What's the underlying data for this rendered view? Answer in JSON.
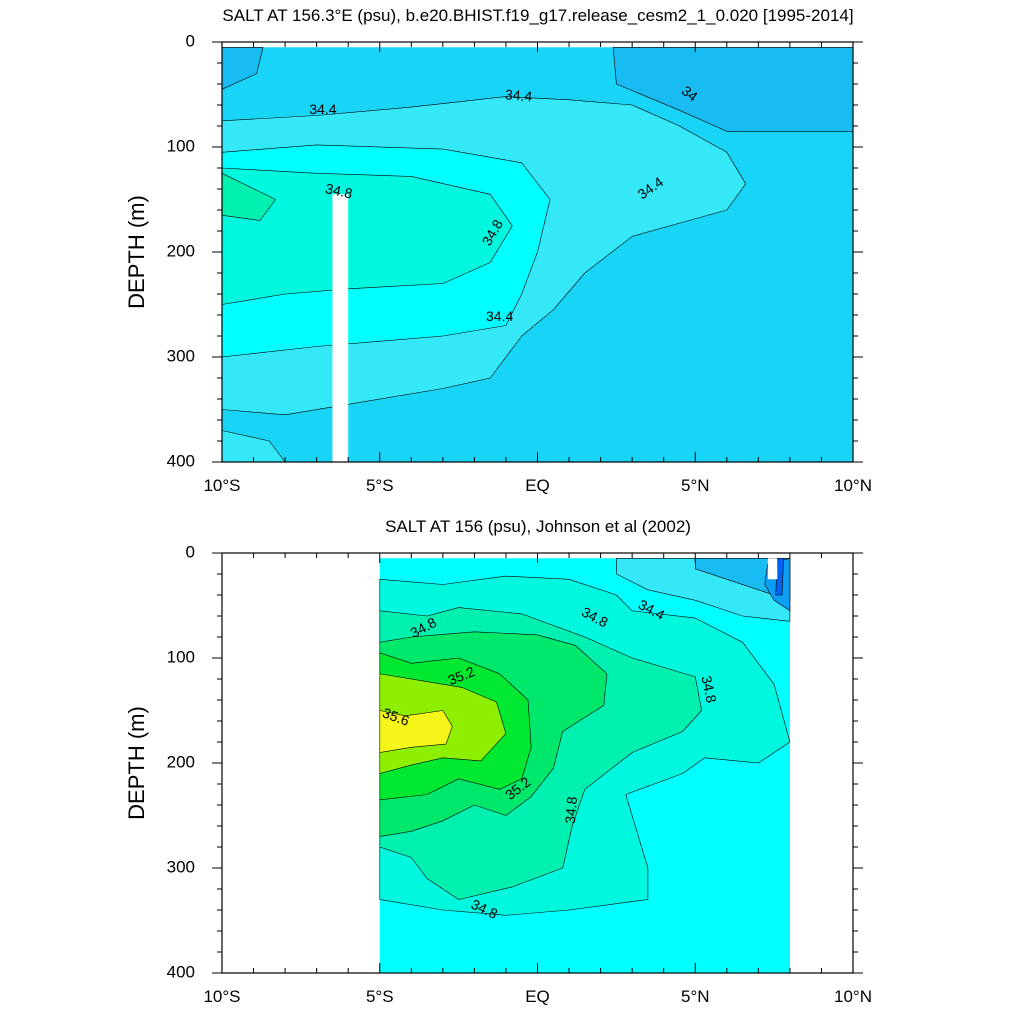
{
  "chart_data": [
    {
      "type": "contour",
      "title": "SALT AT 156.3°E (psu), b.e20.BHIST.f19_g17.release_cesm2_1_0.020 [1995-2014]",
      "ylabel": "DEPTH (m)",
      "xlabel": "",
      "xlim": [
        -10,
        10
      ],
      "ylim": [
        400,
        0
      ],
      "x_ticks": [
        -10,
        -5,
        0,
        5,
        10
      ],
      "x_tick_labels": [
        "10°S",
        "5°S",
        "EQ",
        "5°N",
        "10°N"
      ],
      "y_ticks": [
        0,
        100,
        200,
        300,
        400
      ],
      "y_tick_labels": [
        "0",
        "100",
        "200",
        "300",
        "400"
      ],
      "contour_interval": 0.2,
      "missing_column": {
        "x_range": [
          -6.5,
          -6.0
        ],
        "depth_range": [
          145,
          400
        ]
      },
      "regions": [
        {
          "level": "33.8-34.0",
          "color": "#0a9ef5",
          "polygon": [
            [
              6.3,
              5
            ],
            [
              10,
              5
            ],
            [
              10,
              50
            ],
            [
              7,
              55
            ],
            [
              6.3,
              30
            ]
          ]
        },
        {
          "level": "34.0-34.2",
          "color": "#18bcf3",
          "polygon": [
            [
              -10,
              5
            ],
            [
              -8.7,
              5
            ],
            [
              -8.9,
              30
            ],
            [
              -10,
              45
            ]
          ]
        },
        {
          "level": "34.0-34.2",
          "color": "#18bcf3",
          "polygon": [
            [
              2.4,
              5
            ],
            [
              10,
              5
            ],
            [
              10,
              85
            ],
            [
              6,
              85
            ],
            [
              4.5,
              65
            ],
            [
              2.5,
              40
            ]
          ]
        },
        {
          "level": "34.2-34.4",
          "color": "#35e8f8",
          "polygon": [
            [
              -10,
              75
            ],
            [
              -7,
              70
            ],
            [
              -4,
              62
            ],
            [
              -1,
              52
            ],
            [
              1,
              55
            ],
            [
              3,
              60
            ],
            [
              4.5,
              80
            ],
            [
              6,
              105
            ],
            [
              6.6,
              135
            ],
            [
              6,
              160
            ],
            [
              3,
              185
            ],
            [
              1.5,
              220
            ],
            [
              0.5,
              255
            ],
            [
              -0.5,
              280
            ],
            [
              -1.5,
              320
            ],
            [
              -3,
              330
            ],
            [
              -6,
              345
            ],
            [
              -8,
              355
            ],
            [
              -10,
              350
            ]
          ]
        },
        {
          "level": "34.4-34.6",
          "color": "#00ffff",
          "polygon": [
            [
              -10,
              105
            ],
            [
              -7,
              98
            ],
            [
              -3,
              102
            ],
            [
              -0.5,
              115
            ],
            [
              0.4,
              150
            ],
            [
              0,
              200
            ],
            [
              -0.5,
              240
            ],
            [
              -1,
              270
            ],
            [
              -3,
              280
            ],
            [
              -7,
              290
            ],
            [
              -10,
              300
            ]
          ]
        },
        {
          "level": "34.6-34.8",
          "color": "#00f8df",
          "polygon": [
            [
              -10,
              120
            ],
            [
              -7,
              125
            ],
            [
              -4,
              128
            ],
            [
              -1.5,
              145
            ],
            [
              -0.8,
              175
            ],
            [
              -1.5,
              210
            ],
            [
              -3,
              230
            ],
            [
              -6,
              235
            ],
            [
              -8,
              240
            ],
            [
              -10,
              250
            ]
          ]
        },
        {
          "level": "34.8-35.0",
          "color": "#00f0b0",
          "polygon": [
            [
              -10,
              125
            ],
            [
              -8.3,
              150
            ],
            [
              -8.8,
              170
            ],
            [
              -10,
              165
            ]
          ]
        },
        {
          "level": "34.2-34.4 (deep)",
          "color": "#35e8f8",
          "polygon": [
            [
              -10,
              370
            ],
            [
              -8.5,
              380
            ],
            [
              -8,
              400
            ],
            [
              -10,
              400
            ]
          ]
        }
      ],
      "contour_labels": [
        {
          "text": "34.4",
          "x": -6.8,
          "depth": 65,
          "angle": 0
        },
        {
          "text": "34.4",
          "x": -0.6,
          "depth": 52,
          "angle": 5
        },
        {
          "text": "34",
          "x": 4.8,
          "depth": 50,
          "angle": 38
        },
        {
          "text": "34.8",
          "x": -6.3,
          "depth": 143,
          "angle": 12
        },
        {
          "text": "34.4",
          "x": 3.6,
          "depth": 140,
          "angle": -35
        },
        {
          "text": "34.8",
          "x": -1.4,
          "depth": 182,
          "angle": -60
        },
        {
          "text": "34.4",
          "x": -1.2,
          "depth": 262,
          "angle": 0
        }
      ]
    },
    {
      "type": "contour",
      "title": "SALT AT 156 (psu), Johnson et al (2002)",
      "ylabel": "DEPTH (m)",
      "xlabel": "",
      "xlim": [
        -10,
        10
      ],
      "ylim": [
        400,
        0
      ],
      "x_ticks": [
        -10,
        -5,
        0,
        5,
        10
      ],
      "x_tick_labels": [
        "10°S",
        "5°S",
        "EQ",
        "5°N",
        "10°N"
      ],
      "y_ticks": [
        0,
        100,
        200,
        300,
        400
      ],
      "y_tick_labels": [
        "0",
        "100",
        "200",
        "300",
        "400"
      ],
      "contour_interval": 0.2,
      "data_extent": {
        "x_range": [
          -5,
          8
        ],
        "depth_range": [
          5,
          400
        ]
      },
      "regions": [
        {
          "level": "34.4-34.6",
          "color": "#00ffff",
          "polygon": [
            [
              -5,
              5
            ],
            [
              8,
              5
            ],
            [
              8,
              400
            ],
            [
              -5,
              400
            ]
          ]
        },
        {
          "level": "34.2-34.4",
          "color": "#35e8f8",
          "polygon": [
            [
              2.5,
              5
            ],
            [
              8,
              5
            ],
            [
              8,
              65
            ],
            [
              6.5,
              60
            ],
            [
              5,
              45
            ],
            [
              3.5,
              35
            ],
            [
              2.5,
              20
            ]
          ]
        },
        {
          "level": "34.0-34.2",
          "color": "#18bcf3",
          "polygon": [
            [
              5,
              5
            ],
            [
              8,
              5
            ],
            [
              8,
              45
            ],
            [
              7,
              35
            ],
            [
              6,
              25
            ],
            [
              5,
              15
            ]
          ]
        },
        {
          "level": "33.8-34.0",
          "color": "#0a9ef5",
          "polygon": [
            [
              7.3,
              10
            ],
            [
              8,
              5
            ],
            [
              8,
              55
            ],
            [
              7.5,
              45
            ],
            [
              7.2,
              30
            ]
          ]
        },
        {
          "level": "33.6-33.8",
          "color": "#0064f0",
          "polygon": [
            [
              7.6,
              5
            ],
            [
              7.8,
              5
            ],
            [
              7.75,
              40
            ],
            [
              7.55,
              40
            ]
          ]
        },
        {
          "level": "34.6-34.8",
          "color": "#00f8df",
          "polygon": [
            [
              -5,
              25
            ],
            [
              -3,
              30
            ],
            [
              -1,
              22
            ],
            [
              1,
              25
            ],
            [
              2.5,
              40
            ],
            [
              3,
              55
            ],
            [
              5,
              62
            ],
            [
              6.5,
              85
            ],
            [
              7.5,
              125
            ],
            [
              8,
              180
            ],
            [
              7,
              200
            ],
            [
              5.3,
              195
            ],
            [
              4.6,
              210
            ],
            [
              2.8,
              230
            ],
            [
              3.5,
              300
            ],
            [
              3.5,
              330
            ],
            [
              1,
              340
            ],
            [
              -1,
              345
            ],
            [
              -3,
              340
            ],
            [
              -5,
              330
            ]
          ]
        },
        {
          "level": "34.8-35.0",
          "color": "#00f0b0",
          "polygon": [
            [
              -5,
              55
            ],
            [
              -3.5,
              60
            ],
            [
              -2.5,
              52
            ],
            [
              -0.5,
              58
            ],
            [
              1.5,
              80
            ],
            [
              3,
              100
            ],
            [
              5,
              118
            ],
            [
              5.2,
              150
            ],
            [
              4.6,
              170
            ],
            [
              3,
              190
            ],
            [
              1.5,
              225
            ],
            [
              1.1,
              260
            ],
            [
              0.8,
              300
            ],
            [
              -0.8,
              318
            ],
            [
              -2.5,
              330
            ],
            [
              -3.5,
              310
            ],
            [
              -4,
              290
            ],
            [
              -5,
              280
            ]
          ]
        },
        {
          "level": "35.0-35.2",
          "color": "#00e86b",
          "polygon": [
            [
              -5,
              85
            ],
            [
              -4,
              80
            ],
            [
              -2,
              75
            ],
            [
              0,
              78
            ],
            [
              1.2,
              88
            ],
            [
              2.2,
              115
            ],
            [
              2.1,
              145
            ],
            [
              0.8,
              170
            ],
            [
              0.5,
              205
            ],
            [
              -0.2,
              232
            ],
            [
              -1,
              250
            ],
            [
              -2,
              240
            ],
            [
              -3,
              255
            ],
            [
              -4,
              265
            ],
            [
              -5,
              270
            ]
          ]
        },
        {
          "level": "35.2-35.4",
          "color": "#00e830",
          "polygon": [
            [
              -5,
              95
            ],
            [
              -4,
              105
            ],
            [
              -2.5,
              100
            ],
            [
              -1.2,
              115
            ],
            [
              -0.3,
              140
            ],
            [
              -0.2,
              185
            ],
            [
              -0.5,
              215
            ],
            [
              -1.2,
              225
            ],
            [
              -2.5,
              215
            ],
            [
              -3.5,
              230
            ],
            [
              -5,
              235
            ]
          ]
        },
        {
          "level": "35.4-35.6",
          "color": "#8ef000",
          "polygon": [
            [
              -5,
              115
            ],
            [
              -3.6,
              122
            ],
            [
              -2.4,
              128
            ],
            [
              -1.3,
              142
            ],
            [
              -1,
              172
            ],
            [
              -1.8,
              198
            ],
            [
              -3,
              195
            ],
            [
              -4,
              202
            ],
            [
              -5,
              210
            ]
          ]
        },
        {
          "level": "35.6-35.8",
          "color": "#f5f51a",
          "polygon": [
            [
              -5,
              150
            ],
            [
              -4.2,
              155
            ],
            [
              -3,
              150
            ],
            [
              -2.7,
              165
            ],
            [
              -2.9,
              182
            ],
            [
              -4,
              185
            ],
            [
              -5,
              190
            ]
          ]
        }
      ],
      "contour_labels": [
        {
          "text": "34.8",
          "x": -3.6,
          "depth": 72,
          "angle": -28
        },
        {
          "text": "34.8",
          "x": 1.8,
          "depth": 62,
          "angle": 28
        },
        {
          "text": "34.4",
          "x": 3.6,
          "depth": 55,
          "angle": 28
        },
        {
          "text": "35.2",
          "x": -2.4,
          "depth": 118,
          "angle": -22
        },
        {
          "text": "34.8",
          "x": 5.4,
          "depth": 130,
          "angle": 78
        },
        {
          "text": "35.6",
          "x": -4.5,
          "depth": 157,
          "angle": 20
        },
        {
          "text": "35.2",
          "x": -0.6,
          "depth": 225,
          "angle": -38
        },
        {
          "text": "34.8",
          "x": 1.1,
          "depth": 245,
          "angle": -85
        },
        {
          "text": "34.8",
          "x": -1.7,
          "depth": 340,
          "angle": 25
        }
      ]
    }
  ]
}
